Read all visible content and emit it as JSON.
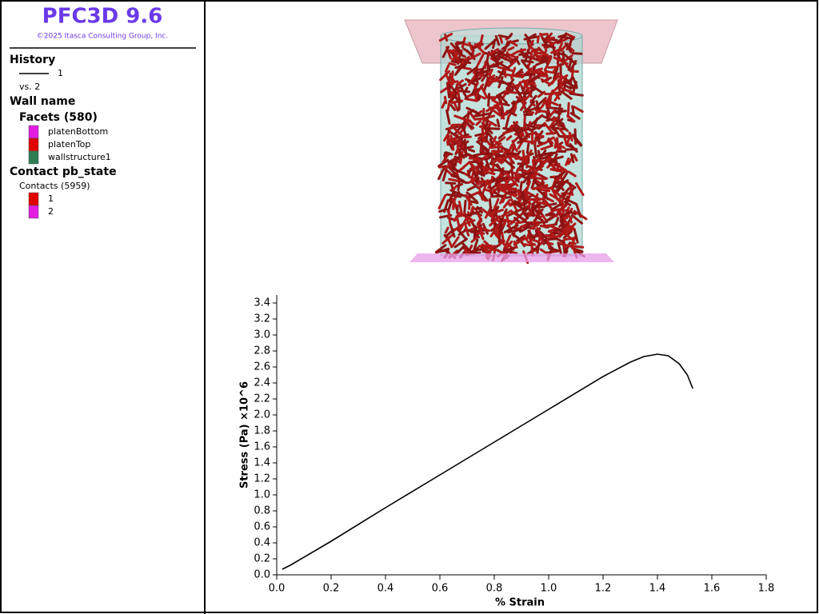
{
  "header": {
    "title": "PFC3D 9.6",
    "copyright": "©2025 Itasca Consulting Group, Inc."
  },
  "legend": {
    "history_title": "History",
    "history_vs": "vs. 2",
    "wall_title": "Wall name",
    "facets_title": "Facets (580)",
    "facets": [
      {
        "name": "platenBottom",
        "color": "#e21de2"
      },
      {
        "name": "platenTop",
        "color": "#e00000"
      },
      {
        "name": "wallstructure1",
        "color": "#2e7d54"
      }
    ],
    "contact_title": "Contact pb_state",
    "contacts_title": "Contacts (5959)",
    "contacts": [
      {
        "name": "1",
        "color": "#e00000"
      },
      {
        "name": "2",
        "color": "#e21de2"
      }
    ]
  },
  "chart_data": {
    "type": "line",
    "x_label": "% Strain",
    "y_label": "Stress (Pa) ×10^6",
    "x": [
      0.02,
      0.05,
      0.2,
      0.4,
      0.6,
      0.8,
      1.0,
      1.2,
      1.3,
      1.35,
      1.4,
      1.44,
      1.48,
      1.51,
      1.53
    ],
    "series": [
      {
        "name": "1",
        "color": "#000000",
        "values": [
          0.07,
          0.12,
          0.42,
          0.84,
          1.25,
          1.66,
          2.07,
          2.48,
          2.66,
          2.73,
          2.76,
          2.74,
          2.64,
          2.5,
          2.33
        ]
      }
    ],
    "xlim": [
      0,
      1.8
    ],
    "xticks": [
      {
        "value": 0,
        "label": "0.0"
      },
      0.2,
      0.4,
      0.6,
      0.8,
      {
        "value": 1,
        "label": "1.0"
      },
      1.2,
      1.4,
      1.6,
      1.8
    ],
    "ylim": [
      0,
      3.5
    ],
    "yticks": [
      {
        "value": 0,
        "label": "0.0"
      },
      0.2,
      0.4,
      0.6,
      0.8,
      {
        "value": 1,
        "label": "1.0"
      },
      1.2,
      1.4,
      1.6,
      1.8,
      {
        "value": 2,
        "label": "2.0"
      },
      2.2,
      2.4,
      2.6,
      2.8,
      {
        "value": 3,
        "label": "3.0"
      },
      3.2,
      3.4
    ]
  }
}
